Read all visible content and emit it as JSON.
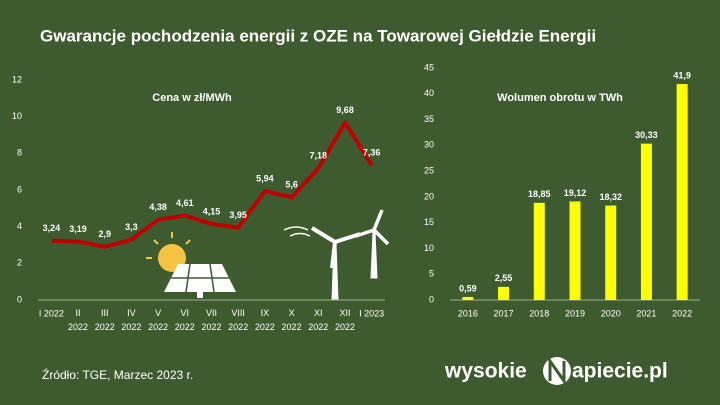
{
  "title": "Gwarancje pochodzenia energii z OZE na Towarowej Giełdzie Energii",
  "source": "Źródło: TGE, Marzec 2023 r.",
  "brand": {
    "left": "wysokie",
    "right": "apiecie.pl"
  },
  "chart_data": [
    {
      "type": "line",
      "subtitle": "Cena w zł/MWh",
      "categories": [
        "I 2022",
        "II\n2022",
        "III\n2022",
        "IV\n2022",
        "V\n2022",
        "VI\n2022",
        "VII\n2022",
        "VIII\n2022",
        "IX\n2022",
        "X\n2022",
        "XI\n2022",
        "XII\n2022",
        "I 2023"
      ],
      "values": [
        3.24,
        3.19,
        2.9,
        3.3,
        4.38,
        4.61,
        4.15,
        3.95,
        5.94,
        5.6,
        7.18,
        9.68,
        7.36
      ],
      "value_labels": [
        "3,24",
        "3,19",
        "2,9",
        "3,3",
        "4,38",
        "4,61",
        "4,15",
        "3,95",
        "5,94",
        "5,6",
        "7,18",
        "9,68",
        "7,36"
      ],
      "color": "#c00000",
      "ylim": [
        0,
        12
      ],
      "yticks": [
        0,
        2,
        4,
        6,
        8,
        10,
        12
      ],
      "grid": false
    },
    {
      "type": "bar",
      "subtitle": "Wolumen obrotu w TWh",
      "categories": [
        "2016",
        "2017",
        "2018",
        "2019",
        "2020",
        "2021",
        "2022"
      ],
      "values": [
        0.59,
        2.55,
        18.85,
        19.12,
        18.32,
        30.33,
        41.9
      ],
      "value_labels": [
        "0,59",
        "2,55",
        "18,85",
        "19,12",
        "18,32",
        "30,33",
        "41,9"
      ],
      "color": "#ffff00",
      "ylim": [
        0,
        45
      ],
      "yticks": [
        0,
        5,
        10,
        15,
        20,
        25,
        30,
        35,
        40,
        45
      ],
      "grid": false
    }
  ]
}
